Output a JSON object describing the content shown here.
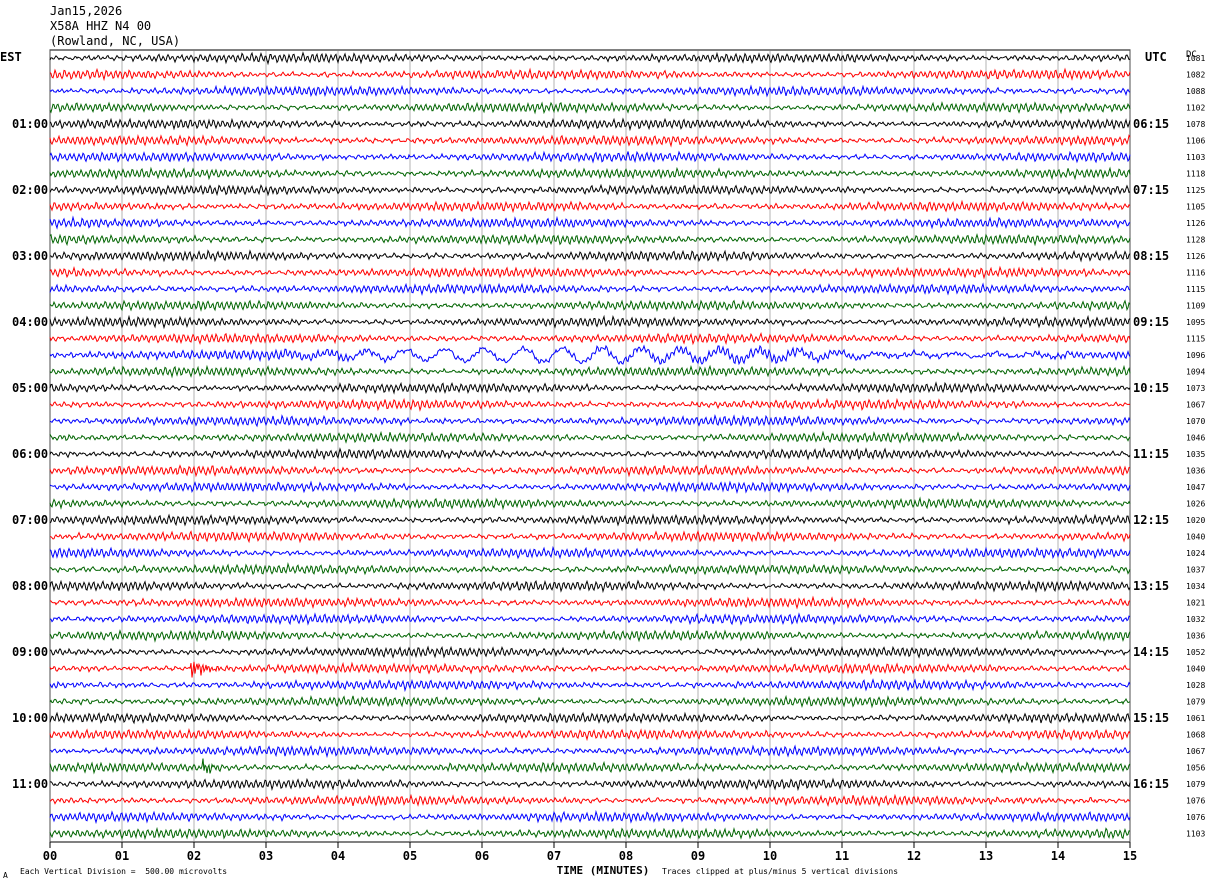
{
  "header": {
    "date": "Jan15,2026",
    "station": "X58A HHZ N4 00",
    "location": "(Rowland, NC, USA)"
  },
  "left_tz": "EST",
  "right_tz": "UTC",
  "dc_label": "DC",
  "footer": {
    "scale_note": "Each Vertical Division =  500.00 microvolts",
    "clip_note": "Traces clipped at plus/minus 5 vertical divisions",
    "corner_mark": "A"
  },
  "colors": {
    "black": "#000000",
    "red": "#ff0000",
    "blue": "#0000ff",
    "green": "#006400",
    "grid": "#808080"
  },
  "chart_data": {
    "type": "line",
    "xlabel": "TIME (MINUTES)",
    "xlim": [
      0,
      15
    ],
    "x_ticks": [
      "00",
      "01",
      "02",
      "03",
      "04",
      "05",
      "06",
      "07",
      "08",
      "09",
      "10",
      "11",
      "12",
      "13",
      "14",
      "15"
    ],
    "rows_per_hour": 4,
    "row_colors": [
      "black",
      "red",
      "blue",
      "green"
    ],
    "left_hour_labels": [
      "01:00",
      "02:00",
      "03:00",
      "04:00",
      "05:00",
      "06:00",
      "07:00",
      "08:00",
      "09:00",
      "10:00",
      "11:00"
    ],
    "right_hour_labels": [
      "06:15",
      "07:15",
      "08:15",
      "09:15",
      "10:15",
      "11:15",
      "12:15",
      "13:15",
      "14:15",
      "15:15",
      "16:15"
    ],
    "dc_offsets": [
      1081,
      1082,
      1088,
      1102,
      1078,
      1106,
      1103,
      1118,
      1125,
      1105,
      1126,
      1128,
      1126,
      1116,
      1115,
      1109,
      1095,
      1115,
      1096,
      1094,
      1073,
      1067,
      1070,
      1046,
      1035,
      1036,
      1047,
      1026,
      1020,
      1040,
      1024,
      1037,
      1034,
      1021,
      1032,
      1036,
      1052,
      1040,
      1028,
      1079,
      1061,
      1068,
      1067,
      1056,
      1079,
      1076,
      1076,
      1103
    ],
    "events": [
      {
        "row": 18,
        "start_min": 3.2,
        "end_min": 14.2,
        "note": "long-period surface wave train"
      },
      {
        "row": 37,
        "start_min": 1.95,
        "end_min": 2.5,
        "note": "local event, clipped"
      },
      {
        "row": 43,
        "start_min": 2.1,
        "end_min": 2.35,
        "note": "small burst"
      }
    ]
  }
}
